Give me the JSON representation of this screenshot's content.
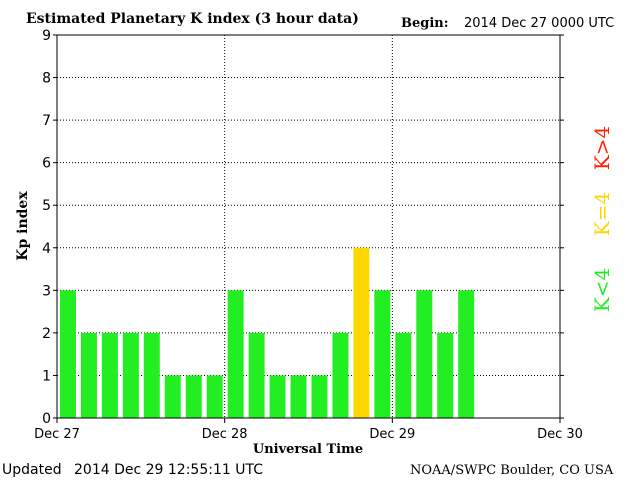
{
  "header": {
    "title": "Estimated Planetary K index (3 hour data)",
    "begin_label": "Begin:",
    "begin_value": "2014 Dec 27 0000 UTC"
  },
  "footer": {
    "updated_label": "Updated",
    "updated_value": "2014 Dec 29 12:55:11 UTC",
    "source": "NOAA/SWPC Boulder, CO USA"
  },
  "legend": {
    "placement": "right",
    "items": [
      {
        "label": "K<4",
        "color": "#22ee22"
      },
      {
        "label": "K=4",
        "color": "#ffd700"
      },
      {
        "label": "K>4",
        "color": "#ff2200"
      }
    ]
  },
  "chart_data": {
    "type": "bar",
    "title": "Estimated Planetary K index (3 hour data)",
    "xlabel": "Universal Time",
    "ylabel": "Kp index",
    "ylim": [
      0,
      9
    ],
    "yticks": [
      "0",
      "1",
      "2",
      "3",
      "4",
      "5",
      "6",
      "7",
      "8",
      "9"
    ],
    "xticks": [
      "Dec 27",
      "Dec 28",
      "Dec 29",
      "Dec 30"
    ],
    "interval_hours": 3,
    "grid": true,
    "values": [
      3,
      2,
      2,
      2,
      2,
      1,
      1,
      1,
      3,
      2,
      1,
      1,
      1,
      2,
      4,
      3,
      2,
      3,
      2,
      3
    ]
  }
}
